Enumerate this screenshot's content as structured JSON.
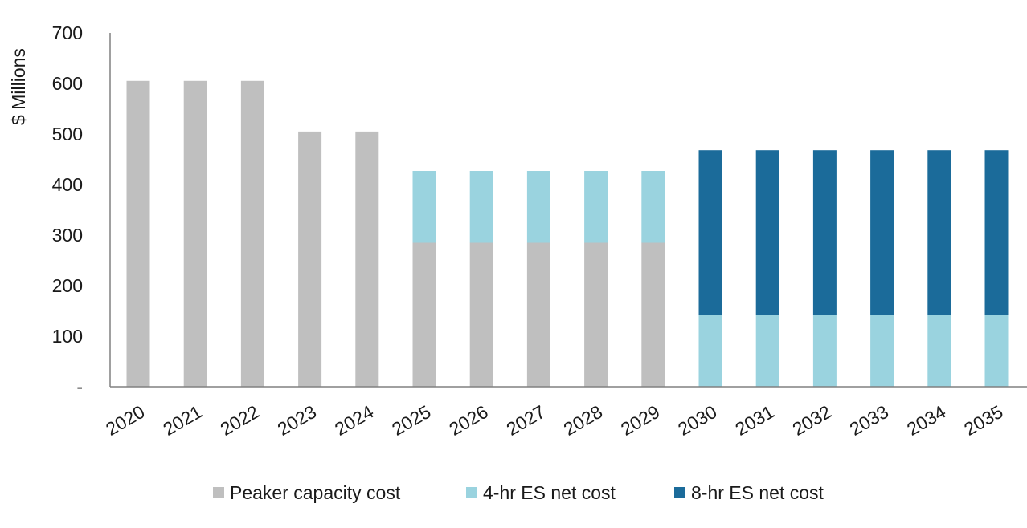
{
  "chart_data": {
    "type": "bar",
    "stacked": true,
    "categories": [
      "2020",
      "2021",
      "2022",
      "2023",
      "2024",
      "2025",
      "2026",
      "2027",
      "2028",
      "2029",
      "2030",
      "2031",
      "2032",
      "2033",
      "2034",
      "2035"
    ],
    "series": [
      {
        "name": "Peaker capacity cost",
        "color": "#bfbfbf",
        "values": [
          605,
          605,
          605,
          505,
          505,
          285,
          285,
          285,
          285,
          285,
          0,
          0,
          0,
          0,
          0,
          0
        ]
      },
      {
        "name": "4-hr ES net cost",
        "color": "#9ad3df",
        "values": [
          0,
          0,
          0,
          0,
          0,
          142,
          142,
          142,
          142,
          142,
          142,
          142,
          142,
          142,
          142,
          142
        ]
      },
      {
        "name": "8-hr ES net cost",
        "color": "#1b6b9a",
        "values": [
          0,
          0,
          0,
          0,
          0,
          0,
          0,
          0,
          0,
          0,
          326,
          326,
          326,
          326,
          326,
          326
        ]
      }
    ],
    "ylabel": "$ Millions",
    "ylim": [
      0,
      700
    ],
    "yticks": [
      0,
      100,
      200,
      300,
      400,
      500,
      600,
      700
    ],
    "ytick_labels": [
      "-",
      "100",
      "200",
      "300",
      "400",
      "500",
      "600",
      "700"
    ],
    "grid": false,
    "legend_position": "bottom"
  }
}
